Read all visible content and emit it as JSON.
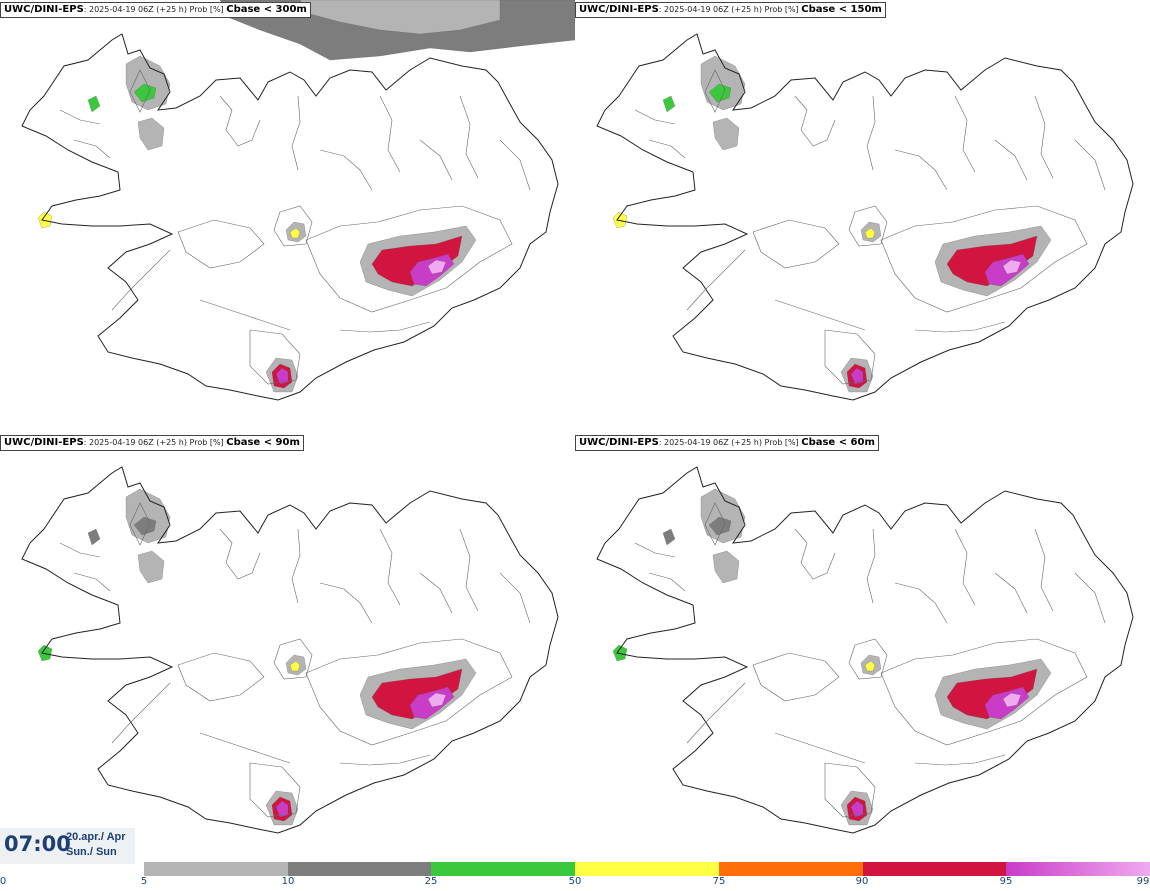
{
  "panels": [
    {
      "model": "UWC/DINI-EPS",
      "meta": ": 2025-04-19 06Z (+25 h) Prob [%] ",
      "param": "Cbase < 300m"
    },
    {
      "model": "UWC/DINI-EPS",
      "meta": ": 2025-04-19 06Z (+25 h) Prob [%] ",
      "param": "Cbase < 150m"
    },
    {
      "model": "UWC/DINI-EPS",
      "meta": ": 2025-04-19 06Z (+25 h) Prob [%] ",
      "param": "Cbase < 90m"
    },
    {
      "model": "UWC/DINI-EPS",
      "meta": ": 2025-04-19 06Z (+25 h) Prob [%] ",
      "param": "Cbase < 60m"
    }
  ],
  "valid_time": {
    "time": "07:00",
    "date": "20.apr./ Apr",
    "day": "Sun./ Sun"
  },
  "colorscale": {
    "ticks": [
      "0",
      "5",
      "10",
      "25",
      "50",
      "75",
      "90",
      "95",
      "99"
    ],
    "bins": [
      {
        "from": 5,
        "to": 10,
        "color": "#b4b4b4"
      },
      {
        "from": 10,
        "to": 25,
        "color": "#7d7d7d"
      },
      {
        "from": 25,
        "to": 50,
        "color": "#3cc83c"
      },
      {
        "from": 50,
        "to": 75,
        "color": "#ffff46"
      },
      {
        "from": 75,
        "to": 90,
        "color": "#ff6e0a"
      },
      {
        "from": 90,
        "to": 95,
        "color": "#d21441"
      },
      {
        "from": 95,
        "to": 99,
        "color": "#c83cc8"
      },
      {
        "from": 99,
        "to": 100,
        "color": "#f0aaf0"
      }
    ]
  },
  "colors": {
    "coast": "#222222",
    "contour": "#666666",
    "text_blue": "#1f3f73"
  },
  "field_levels": [
    {
      "panel": 0,
      "hotspots": [
        {
          "name": "vatnajokull",
          "level": 90
        },
        {
          "name": "myrdalsjokull",
          "level": 90
        },
        {
          "name": "hofsjokull",
          "level": 50
        },
        {
          "name": "westfjords",
          "level": 25
        },
        {
          "name": "snaefellsnes",
          "level": 50
        },
        {
          "name": "north-sea",
          "level": 10
        }
      ]
    },
    {
      "panel": 1,
      "hotspots": [
        {
          "name": "vatnajokull",
          "level": 90
        },
        {
          "name": "myrdalsjokull",
          "level": 90
        },
        {
          "name": "hofsjokull",
          "level": 50
        },
        {
          "name": "westfjords",
          "level": 25
        },
        {
          "name": "snaefellsnes",
          "level": 50
        }
      ]
    },
    {
      "panel": 2,
      "hotspots": [
        {
          "name": "vatnajokull",
          "level": 90
        },
        {
          "name": "myrdalsjokull",
          "level": 90
        },
        {
          "name": "hofsjokull",
          "level": 50
        },
        {
          "name": "westfjords",
          "level": 10
        },
        {
          "name": "snaefellsnes",
          "level": 25
        }
      ]
    },
    {
      "panel": 3,
      "hotspots": [
        {
          "name": "vatnajokull",
          "level": 90
        },
        {
          "name": "myrdalsjokull",
          "level": 90
        },
        {
          "name": "hofsjokull",
          "level": 50
        },
        {
          "name": "westfjords",
          "level": 10
        },
        {
          "name": "snaefellsnes",
          "level": 25
        }
      ]
    }
  ]
}
